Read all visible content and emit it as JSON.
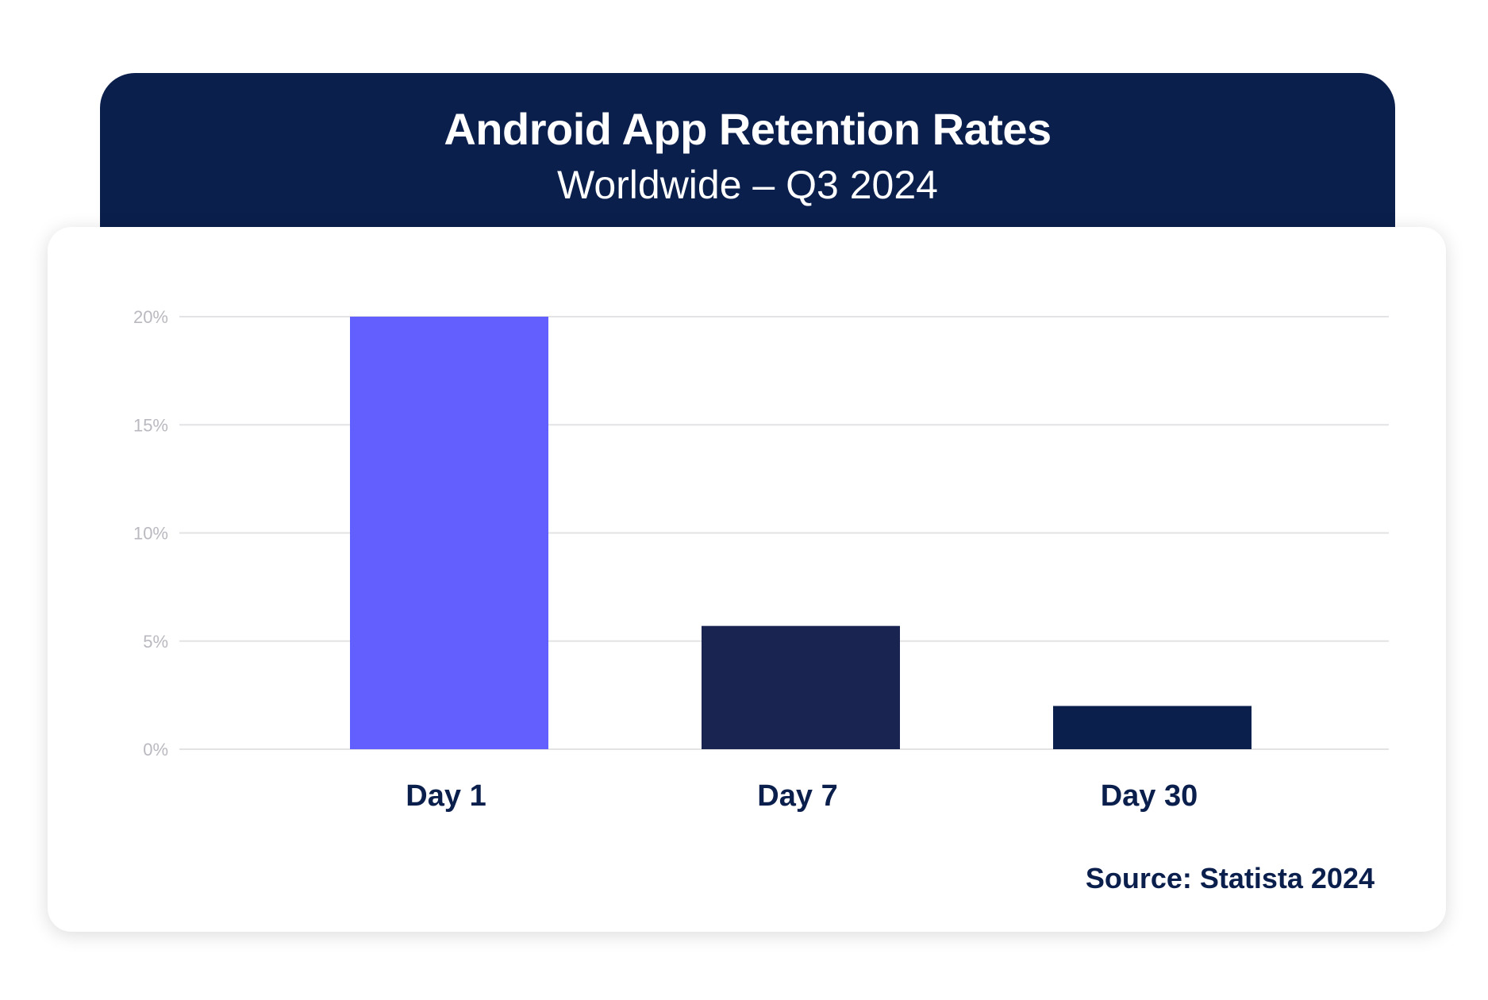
{
  "chart_data": {
    "type": "bar",
    "title": "Android App Retention Rates",
    "subtitle": "Worldwide – Q3 2024",
    "categories": [
      "Day 1",
      "Day 7",
      "Day 30"
    ],
    "values": [
      20,
      5.7,
      2
    ],
    "bar_colors": [
      "#625ffe",
      "#1a2450",
      "#0b1f4d"
    ],
    "ylim": [
      0,
      20
    ],
    "yticks": [
      0,
      5,
      10,
      15,
      20
    ],
    "ytick_labels": [
      "0%",
      "5%",
      "10%",
      "15%",
      "20%"
    ],
    "grid": true,
    "source": "Source: Statista 2024"
  }
}
